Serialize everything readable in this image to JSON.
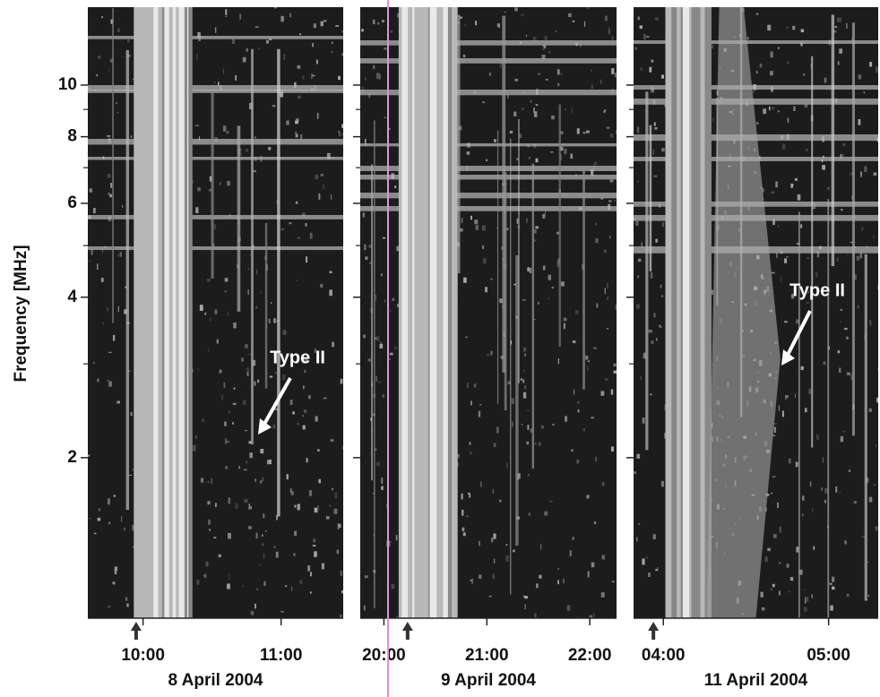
{
  "chart_data": [
    {
      "type": "spectrogram",
      "ylabel": "Frequency [MHz]",
      "ylim": [
        1,
        14
      ],
      "log_y": true,
      "yticks": [
        2,
        4,
        6,
        8,
        10
      ],
      "yminor": [
        3,
        5,
        7,
        9
      ],
      "xlim": [
        9.6,
        11.45
      ],
      "xticks": [
        {
          "value": 10,
          "label": "10:00"
        },
        {
          "value": 11,
          "label": "11:00"
        }
      ],
      "onset": 9.95,
      "date": "8 April 2004",
      "annotation": "Type II"
    },
    {
      "type": "spectrogram",
      "xlim": [
        19.77,
        22.26
      ],
      "xticks": [
        {
          "value": 20,
          "label": "20:00"
        },
        {
          "value": 21,
          "label": "21:00"
        },
        {
          "value": 22,
          "label": "22:00"
        }
      ],
      "onset": 20.23,
      "date": "9 April 2004"
    },
    {
      "type": "spectrogram",
      "xlim": [
        3.82,
        5.3
      ],
      "xticks": [
        {
          "value": 4,
          "label": "04:00"
        },
        {
          "value": 5,
          "label": "05:00"
        }
      ],
      "onset": 3.94,
      "date": "11 April 2004",
      "annotation": "Type II"
    }
  ]
}
